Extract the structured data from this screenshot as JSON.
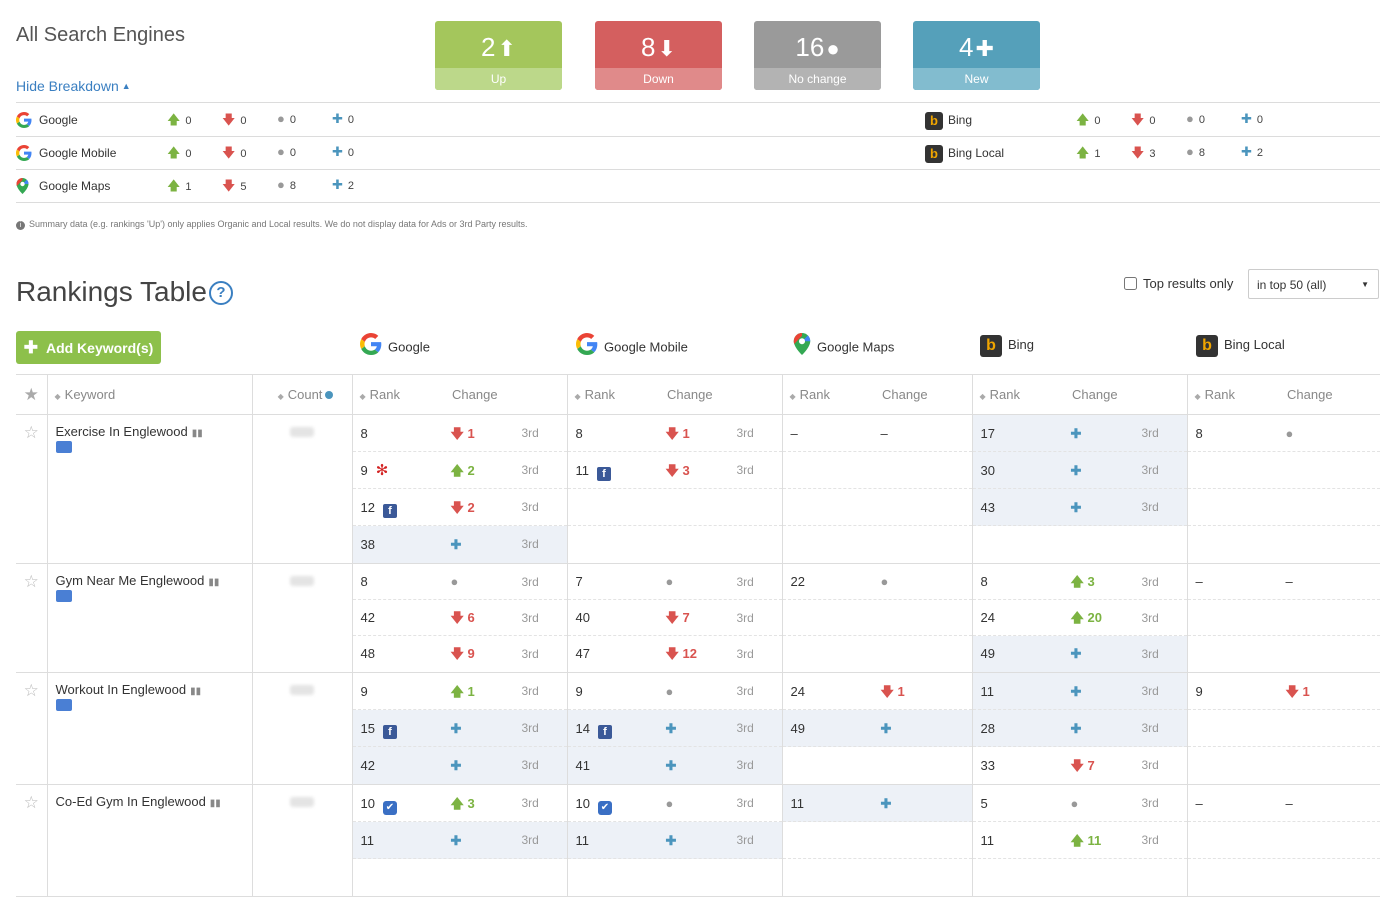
{
  "header": {
    "title": "All Search Engines",
    "hide_breakdown": "Hide Breakdown",
    "cards": [
      {
        "value": "2",
        "label": "Up",
        "symbol": "⬆"
      },
      {
        "value": "8",
        "label": "Down",
        "symbol": "⬇"
      },
      {
        "value": "16",
        "label": "No change",
        "symbol": "●"
      },
      {
        "value": "4",
        "label": "New",
        "symbol": "✚"
      }
    ]
  },
  "breakdown": {
    "left": [
      {
        "name": "Google",
        "up": "0",
        "down": "0",
        "nc": "0",
        "new": "0"
      },
      {
        "name": "Google Mobile",
        "up": "0",
        "down": "0",
        "nc": "0",
        "new": "0"
      },
      {
        "name": "Google Maps",
        "up": "1",
        "down": "5",
        "nc": "8",
        "new": "2"
      }
    ],
    "right": [
      {
        "name": "Bing",
        "up": "0",
        "down": "0",
        "nc": "0",
        "new": "0"
      },
      {
        "name": "Bing Local",
        "up": "1",
        "down": "3",
        "nc": "8",
        "new": "2"
      }
    ]
  },
  "note": "Summary data (e.g. rankings 'Up') only applies Organic and Local results. We do not display data for Ads or 3rd Party results.",
  "rankings": {
    "title": "Rankings Table",
    "help": "?",
    "top_results_label": "Top results only",
    "filter_value": "in top 50 (all)",
    "add_keyword": "Add Keyword(s)",
    "engines": [
      "Google",
      "Google Mobile",
      "Google Maps",
      "Bing",
      "Bing Local"
    ],
    "col_keyword": "Keyword",
    "col_count": "Count",
    "col_rank": "Rank",
    "col_change": "Change",
    "type_label": "3rd",
    "keywords": [
      {
        "keyword": "Exercise In Englewood"
      },
      {
        "keyword": "Gym Near Me Englewood"
      },
      {
        "keyword": "Workout In Englewood"
      },
      {
        "keyword": "Co-Ed Gym In Englewood"
      }
    ]
  },
  "colors": {
    "up": "#7cb342",
    "down": "#d9534f",
    "nochange": "#999999",
    "new": "#4b95bd"
  }
}
